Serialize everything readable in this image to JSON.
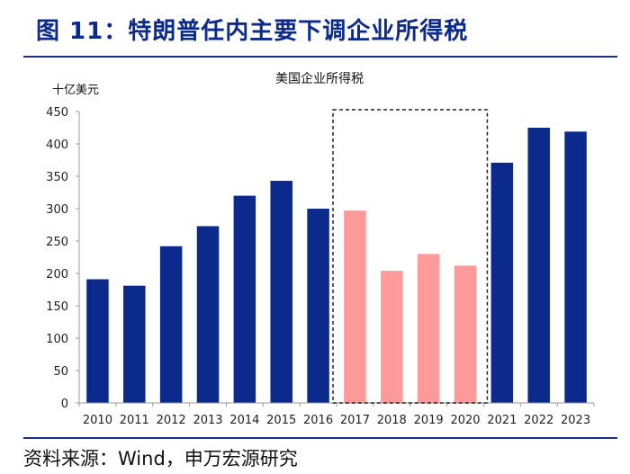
{
  "figure": {
    "title": "图 11：特朗普任内主要下调企业所得税",
    "source": "资料来源：Wind，申万宏源研究"
  },
  "colors": {
    "primary": "#0b2a8c",
    "highlight": "#ff9a9a",
    "rule": "#1a2f8a"
  },
  "chart_data": {
    "type": "bar",
    "title": "美国企业所得税",
    "ylabel": "十亿美元",
    "xlabel": "",
    "ylim": [
      0,
      450
    ],
    "yticks": [
      0,
      50,
      100,
      150,
      200,
      250,
      300,
      350,
      400,
      450
    ],
    "grid": false,
    "categories": [
      "2010",
      "2011",
      "2012",
      "2013",
      "2014",
      "2015",
      "2016",
      "2017",
      "2018",
      "2019",
      "2020",
      "2021",
      "2022",
      "2023"
    ],
    "values": [
      191,
      181,
      242,
      273,
      320,
      343,
      300,
      297,
      204,
      230,
      212,
      371,
      425,
      419
    ],
    "highlight_categories": [
      "2017",
      "2018",
      "2019",
      "2020"
    ],
    "annotation": "dashed box marking 2017–2020"
  }
}
